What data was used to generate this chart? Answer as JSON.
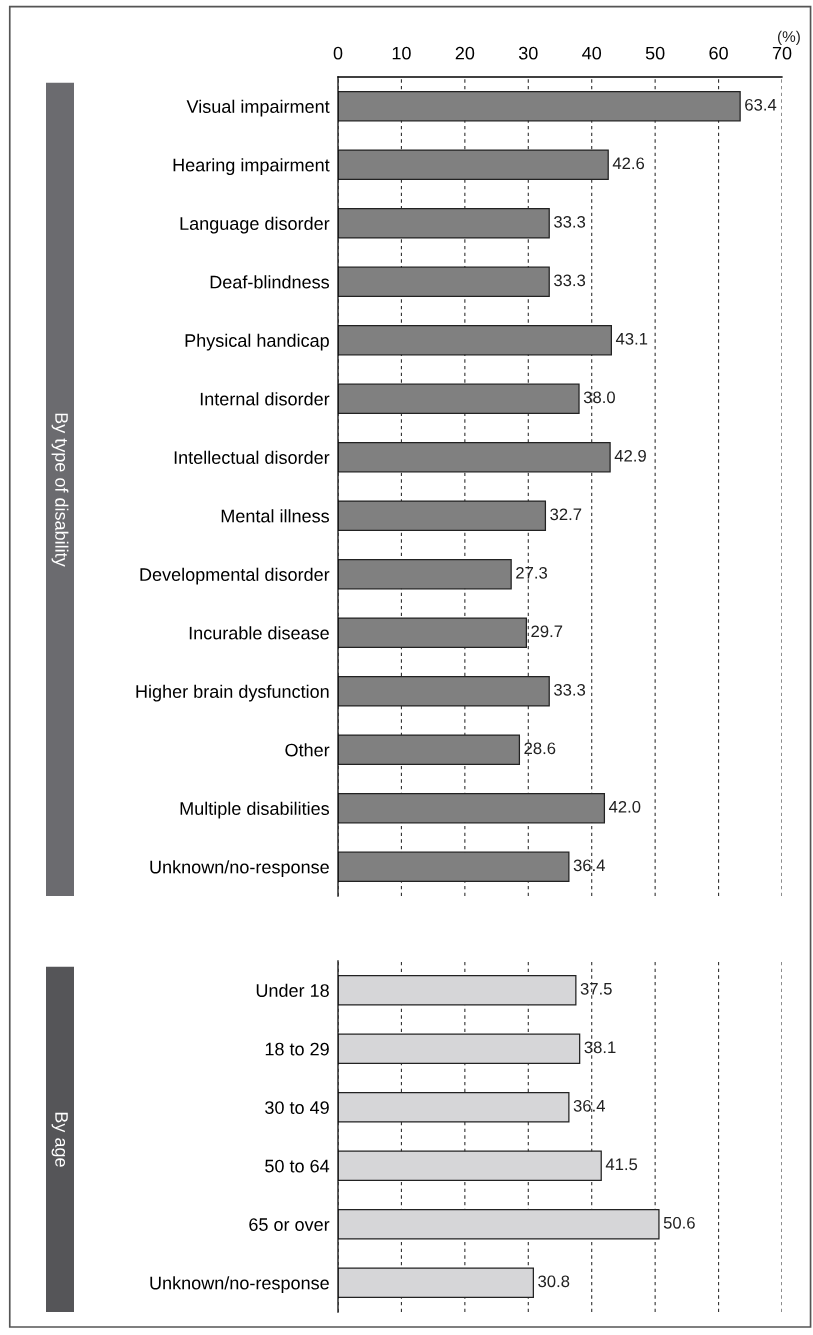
{
  "chart_data": [
    {
      "type": "bar",
      "orientation": "horizontal",
      "ylabel": "By type of disability",
      "annotations": [
        "(%)"
      ],
      "categories": [
        "Visual impairment",
        "Hearing impairment",
        "Language disorder",
        "Deaf-blindness",
        "Physical handicap",
        "Internal disorder",
        "Intellectual disorder",
        "Mental illness",
        "Developmental disorder",
        "Incurable disease",
        "Higher brain dysfunction",
        "Other",
        "Multiple disabilities",
        "Unknown/no-response"
      ],
      "series": [
        {
          "color": "#808080",
          "values": [
            63.4,
            42.6,
            33.3,
            33.3,
            43.1,
            38.0,
            42.9,
            32.7,
            27.3,
            29.7,
            33.3,
            28.6,
            42.0,
            36.4
          ],
          "value_labels": [
            "63.4",
            "42.6",
            "33.3",
            "33.3",
            "43.1",
            "38.0",
            "42.9",
            "32.7",
            "27.3",
            "29.7",
            "33.3",
            "28.6",
            "42.0",
            "36.4"
          ]
        }
      ],
      "xlim": [
        0,
        70
      ],
      "xticks": [
        0,
        10,
        20,
        30,
        40,
        50,
        60,
        70
      ],
      "grid": "x",
      "legend": false
    },
    {
      "type": "bar",
      "orientation": "horizontal",
      "ylabel": "By age",
      "categories": [
        "Under 18",
        "18 to 29",
        "30 to 49",
        "50 to 64",
        "65 or over",
        "Unknown/no-response"
      ],
      "series": [
        {
          "color": "#d6d6d8",
          "values": [
            37.5,
            38.1,
            36.4,
            41.5,
            50.6,
            30.8
          ],
          "value_labels": [
            "37.5",
            "38.1",
            "36.4",
            "41.5",
            "50.6",
            "30.8"
          ]
        }
      ],
      "xlim": [
        0,
        70
      ],
      "xticks": [
        0,
        10,
        20,
        30,
        40,
        50,
        60,
        70
      ],
      "grid": "x",
      "legend": false,
      "tick_labels": "y"
    }
  ]
}
